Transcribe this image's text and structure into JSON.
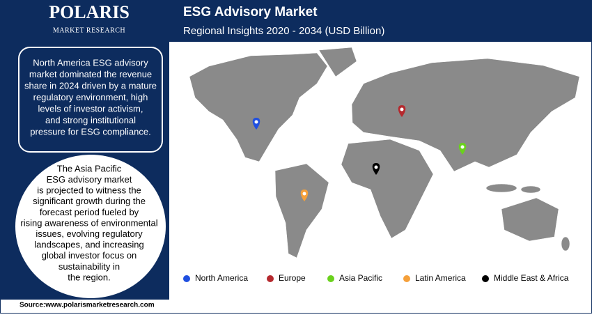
{
  "header": {
    "logo": "POLARIS",
    "logo_sub": "MARKET RESEARCH",
    "title": "ESG Advisory Market",
    "subtitle": "Regional Insights 2020 - 2034 (USD Billion)"
  },
  "insights": [
    {
      "lines": [
        "North America ESG advisory",
        "market dominated the revenue",
        "share in 2024 driven by a mature",
        "regulatory environment, high",
        "levels of investor activism,",
        "and strong institutional",
        "pressure for ESG compliance."
      ]
    },
    {
      "lines": [
        "The Asia Pacific",
        "ESG advisory market",
        "is projected to witness the",
        "significant growth during the",
        "forecast period fueled by",
        "rising awareness of environmental",
        "issues, evolving regulatory",
        "landscapes, and increasing",
        "global investor focus on",
        "sustainability in",
        "the region."
      ]
    }
  ],
  "legend": [
    {
      "name": "North America",
      "color": "#1f4fe0"
    },
    {
      "name": "Europe",
      "color": "#b5292e"
    },
    {
      "name": "Asia Pacific",
      "color": "#6ad11d"
    },
    {
      "name": "Latin America",
      "color": "#f5a03a"
    },
    {
      "name": "Middle East & Africa",
      "color": "#000000"
    }
  ],
  "source": "Source:www.polarismarketresearch.com"
}
